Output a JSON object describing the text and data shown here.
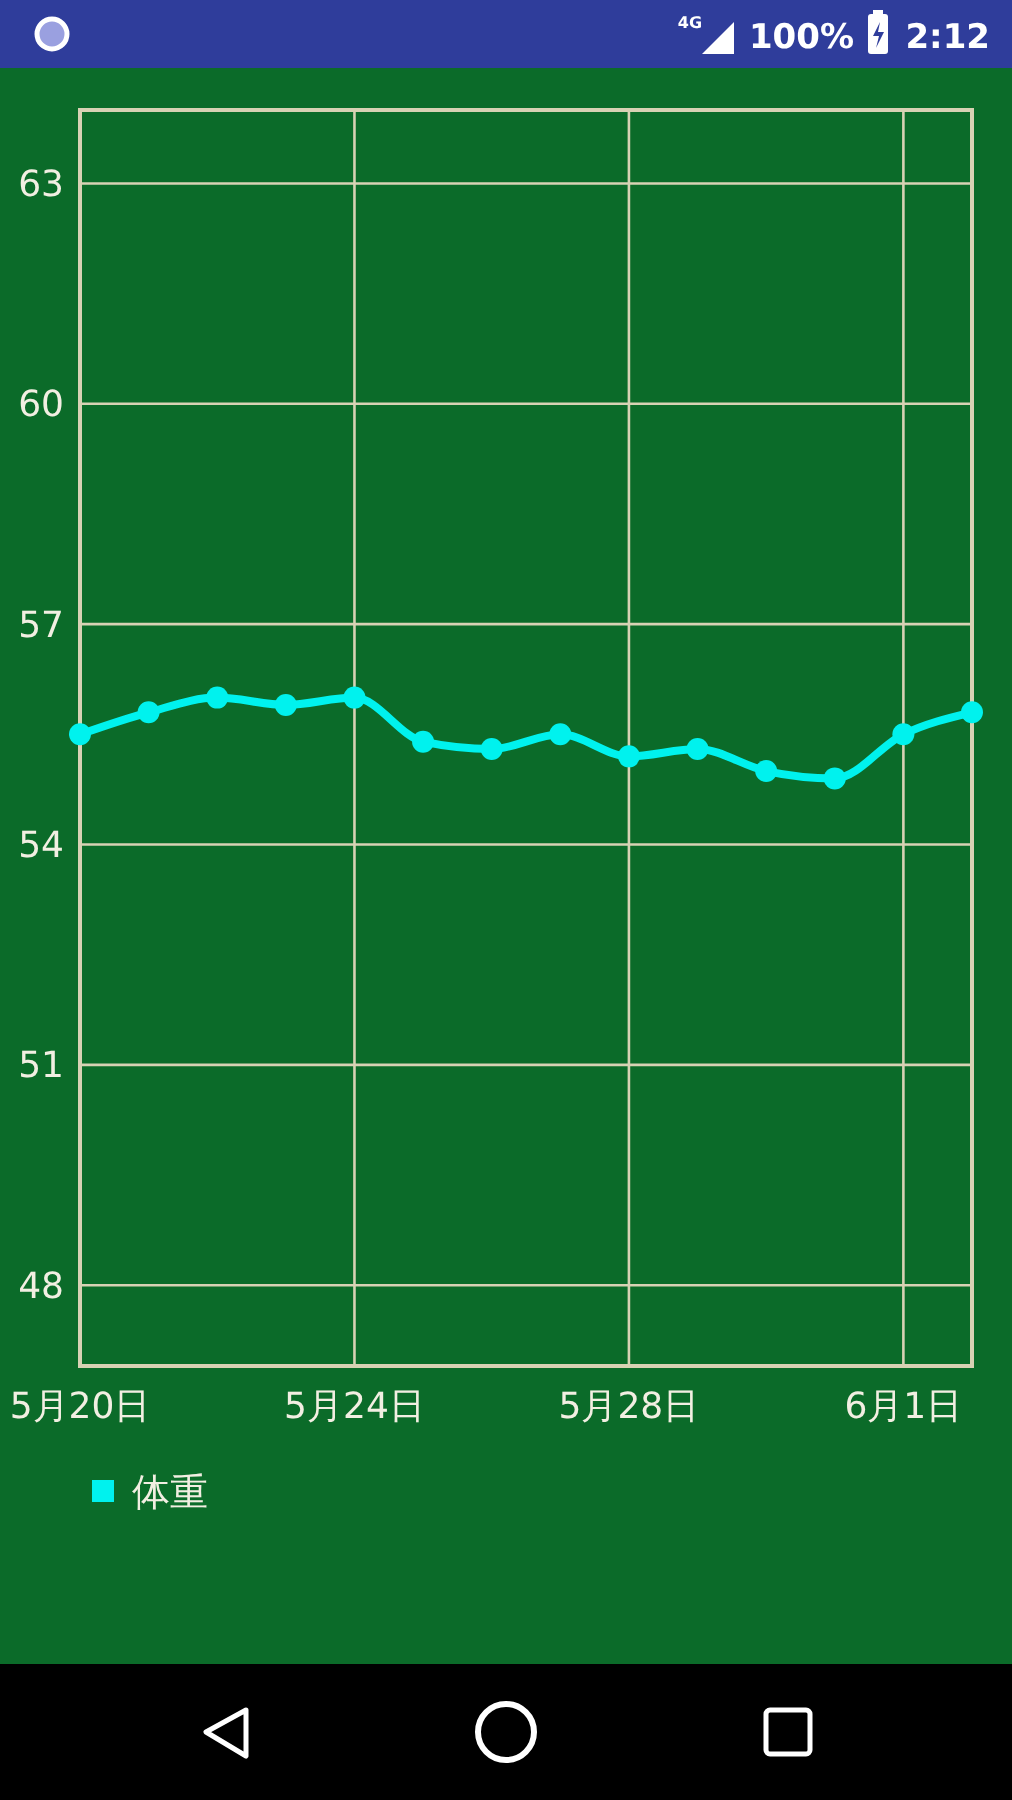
{
  "chart_data": {
    "type": "line",
    "x": [
      "--05-20",
      "--05-21",
      "--05-22",
      "--05-23",
      "--05-24",
      "--05-25",
      "--05-26",
      "--05-27",
      "--05-28",
      "--05-29",
      "--05-30",
      "--05-31",
      "--06-01",
      "--06-02"
    ],
    "series": [
      {
        "name": "体重",
        "color": "#00f2ee",
        "values": [
          55.5,
          55.8,
          56.0,
          55.9,
          56.0,
          55.4,
          55.3,
          55.5,
          55.2,
          55.3,
          55.0,
          54.9,
          55.5,
          55.8
        ]
      }
    ],
    "xlim": [
      "--05-20",
      "--06-02"
    ],
    "xticks": [
      {
        "value": "--05-20",
        "label": "5月20日"
      },
      {
        "value": "--05-24",
        "label": "5月24日"
      },
      {
        "value": "--05-28",
        "label": "5月28日"
      },
      {
        "value": "--06-01",
        "label": "6月1日"
      }
    ],
    "ylim": [
      46.9,
      64.0
    ],
    "yticks": [
      48,
      51,
      54,
      57,
      60,
      63
    ],
    "grid": true,
    "legend": "bottom left",
    "marker": "circle",
    "line_style": "solid",
    "annotations": [
      "4G",
      "100%",
      "2:12"
    ]
  }
}
